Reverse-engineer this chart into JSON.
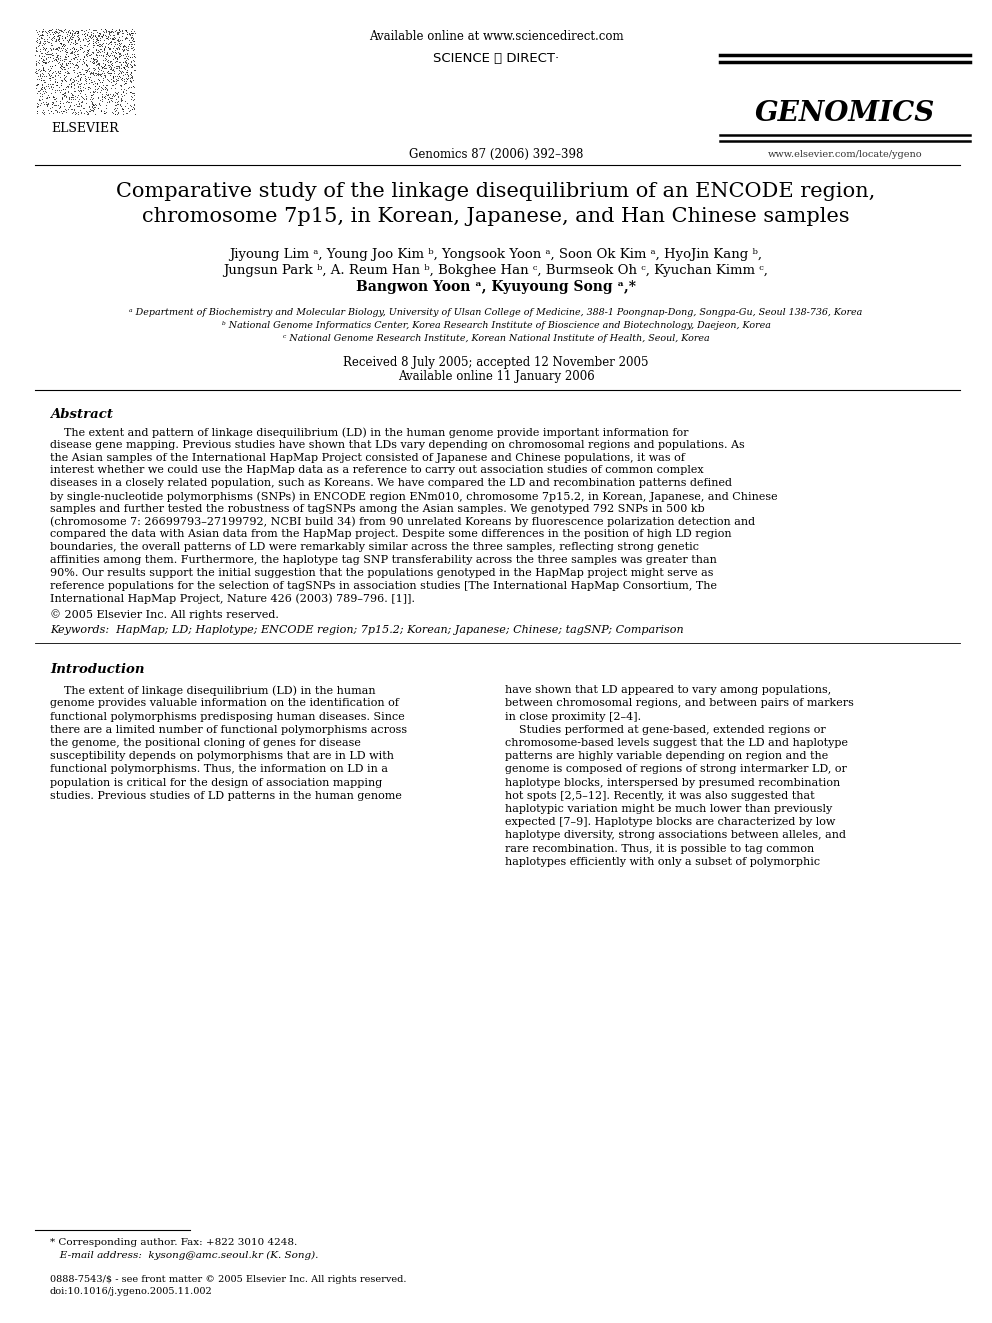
{
  "page_bg": "#ffffff",
  "available_online": "Available online at www.sciencedirect.com",
  "sciencedirect_text": "SCIENCE ⓓ DIRECT·",
  "journal_name": "GENOMICS",
  "journal_ref": "Genomics 87 (2006) 392–398",
  "journal_url": "www.elsevier.com/locate/ygeno",
  "elsevier_text": "ELSEVIER",
  "title_line1": "Comparative study of the linkage disequilibrium of an ENCODE region,",
  "title_line2": "chromosome 7p15, in Korean, Japanese, and Han Chinese samples",
  "authors_line1": "Jiyoung Lim ᵃ, Young Joo Kim ᵇ, Yongsook Yoon ᵃ, Soon Ok Kim ᵃ, HyoJin Kang ᵇ,",
  "authors_line2": "Jungsun Park ᵇ, A. Reum Han ᵇ, Bokghee Han ᶜ, Burmseok Oh ᶜ, Kyuchan Kimm ᶜ,",
  "authors_line3": "Bangwon Yoon ᵃ, Kyuyoung Song ᵃ,*",
  "affil_a": "ᵃ Department of Biochemistry and Molecular Biology, University of Ulsan College of Medicine, 388-1 Poongnap-Dong, Songpa-Gu, Seoul 138-736, Korea",
  "affil_b": "ᵇ National Genome Informatics Center, Korea Research Institute of Bioscience and Biotechnology, Daejeon, Korea",
  "affil_c": "ᶜ National Genome Research Institute, Korean National Institute of Health, Seoul, Korea",
  "received": "Received 8 July 2005; accepted 12 November 2005",
  "available": "Available online 11 January 2006",
  "abstract_title": "Abstract",
  "abstract_body": "    The extent and pattern of linkage disequilibrium (LD) in the human genome provide important information for disease gene mapping. Previous studies have shown that LDs vary depending on chromosomal regions and populations. As the Asian samples of the International HapMap Project consisted of Japanese and Chinese populations, it was of interest whether we could use the HapMap data as a reference to carry out association studies of common complex diseases in a closely related population, such as Koreans. We have compared the LD and recombination patterns defined by single-nucleotide polymorphisms (SNPs) in ENCODE region ENm010, chromosome 7p15.2, in Korean, Japanese, and Chinese samples and further tested the robustness of tagSNPs among the Asian samples. We genotyped 792 SNPs in 500 kb (chromosome 7: 26699793–27199792, NCBI build 34) from 90 unrelated Koreans by fluorescence polarization detection and compared the data with Asian data from the HapMap project. Despite some differences in the position of high LD region boundaries, the overall patterns of LD were remarkably similar across the three samples, reflecting strong genetic affinities among them. Furthermore, the haplotype tag SNP transferability across the three samples was greater than 90%. Our results support the initial suggestion that the populations genotyped in the HapMap project might serve as reference populations for the selection of tagSNPs in association studies [The International HapMap Consortium, The International HapMap Project, Nature 426 (2003) 789–796. [1]].",
  "copyright": "© 2005 Elsevier Inc. All rights reserved.",
  "keywords": "Keywords:  HapMap; LD; Haplotype; ENCODE region; 7p15.2; Korean; Japanese; Chinese; tagSNP; Comparison",
  "intro_title": "Introduction",
  "intro_left_lines": [
    "    The extent of linkage disequilibrium (LD) in the human",
    "genome provides valuable information on the identification of",
    "functional polymorphisms predisposing human diseases. Since",
    "there are a limited number of functional polymorphisms across",
    "the genome, the positional cloning of genes for disease",
    "susceptibility depends on polymorphisms that are in LD with",
    "functional polymorphisms. Thus, the information on LD in a",
    "population is critical for the design of association mapping",
    "studies. Previous studies of LD patterns in the human genome"
  ],
  "intro_right_lines": [
    "have shown that LD appeared to vary among populations,",
    "between chromosomal regions, and between pairs of markers",
    "in close proximity [2–4].",
    "    Studies performed at gene-based, extended regions or",
    "chromosome-based levels suggest that the LD and haplotype",
    "patterns are highly variable depending on region and the",
    "genome is composed of regions of strong intermarker LD, or",
    "haplotype blocks, interspersed by presumed recombination",
    "hot spots [2,5–12]. Recently, it was also suggested that",
    "haplotypic variation might be much lower than previously",
    "expected [7–9]. Haplotype blocks are characterized by low",
    "haplotype diversity, strong associations between alleles, and",
    "rare recombination. Thus, it is possible to tag common",
    "haplotypes efficiently with only a subset of polymorphic"
  ],
  "footnote_star": "* Corresponding author. Fax: +822 3010 4248.",
  "footnote_email": "   E-mail address:  kysong@amc.seoul.kr (K. Song).",
  "footer_issn": "0888-7543/$ - see front matter © 2005 Elsevier Inc. All rights reserved.",
  "footer_doi": "doi:10.1016/j.ygeno.2005.11.002"
}
